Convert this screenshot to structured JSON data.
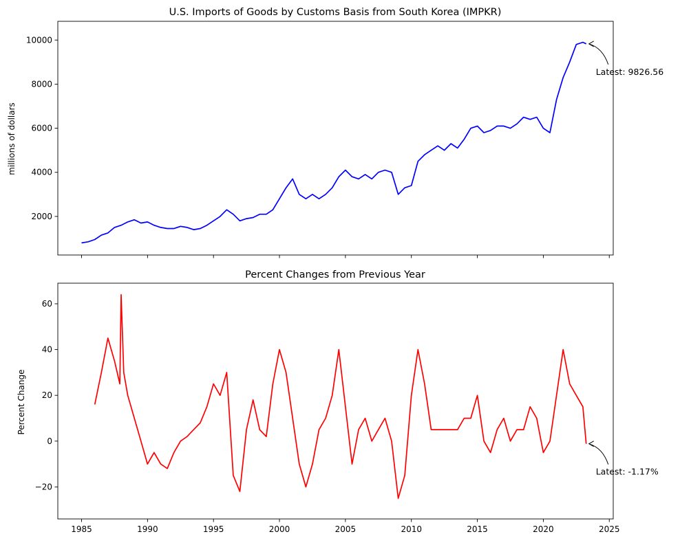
{
  "chart_data": [
    {
      "type": "line",
      "title": "U.S. Imports of Goods by Customs Basis from South Korea (IMPKR)",
      "ylabel": "millions of dollars",
      "xlabel": "",
      "xlim": [
        1983.2,
        2025.3
      ],
      "ylim": [
        250,
        10850
      ],
      "yticks": [
        2000,
        4000,
        6000,
        8000,
        10000
      ],
      "xticks": [
        1985,
        1990,
        1995,
        2000,
        2005,
        2010,
        2015,
        2020,
        2025
      ],
      "x_tick_labels_shown": false,
      "grid": false,
      "color": "#0000ff",
      "annotation": {
        "text": "Latest: 9826.56",
        "x": 2023.25,
        "y": 9826.56
      },
      "series": [
        {
          "x": [
            1985.0,
            1985.5,
            1986.0,
            1986.5,
            1987.0,
            1987.5,
            1988.0,
            1988.5,
            1989.0,
            1989.5,
            1990.0,
            1990.5,
            1991.0,
            1991.5,
            1992.0,
            1992.5,
            1993.0,
            1993.5,
            1994.0,
            1994.5,
            1995.0,
            1995.5,
            1996.0,
            1996.5,
            1997.0,
            1997.5,
            1998.0,
            1998.5,
            1999.0,
            1999.5,
            2000.0,
            2000.5,
            2001.0,
            2001.5,
            2002.0,
            2002.5,
            2003.0,
            2003.5,
            2004.0,
            2004.5,
            2005.0,
            2005.5,
            2006.0,
            2006.5,
            2007.0,
            2007.5,
            2008.0,
            2008.5,
            2009.0,
            2009.5,
            2010.0,
            2010.5,
            2011.0,
            2011.5,
            2012.0,
            2012.5,
            2013.0,
            2013.5,
            2014.0,
            2014.5,
            2015.0,
            2015.5,
            2016.0,
            2016.5,
            2017.0,
            2017.5,
            2018.0,
            2018.5,
            2019.0,
            2019.5,
            2020.0,
            2020.5,
            2021.0,
            2021.5,
            2022.0,
            2022.5,
            2023.0,
            2023.25
          ],
          "y": [
            800,
            850,
            950,
            1150,
            1250,
            1500,
            1600,
            1750,
            1850,
            1700,
            1750,
            1600,
            1500,
            1450,
            1450,
            1550,
            1500,
            1400,
            1450,
            1600,
            1800,
            2000,
            2300,
            2100,
            1800,
            1900,
            1950,
            2100,
            2100,
            2300,
            2800,
            3300,
            3700,
            3000,
            2800,
            3000,
            2800,
            3000,
            3300,
            3800,
            4100,
            3800,
            3700,
            3900,
            3700,
            4000,
            4100,
            4000,
            3000,
            3300,
            3400,
            4500,
            4800,
            5000,
            5200,
            5000,
            5300,
            5100,
            5500,
            6000,
            6100,
            5800,
            5900,
            6100,
            6100,
            6000,
            6200,
            6500,
            6400,
            6500,
            6000,
            5800,
            7300,
            8300,
            9000,
            9800,
            9900,
            9826.56
          ]
        }
      ]
    },
    {
      "type": "line",
      "title": "Percent Changes from Previous Year",
      "ylabel": "Percent Change",
      "xlabel": "",
      "xlim": [
        1983.2,
        2025.3
      ],
      "ylim": [
        -34,
        69
      ],
      "yticks": [
        -20,
        0,
        20,
        40,
        60
      ],
      "xticks": [
        1985,
        1990,
        1995,
        2000,
        2005,
        2010,
        2015,
        2020,
        2025
      ],
      "grid": false,
      "color": "#ff0000",
      "annotation": {
        "text": "Latest: -1.17%",
        "x": 2023.25,
        "y": -1.17
      },
      "series": [
        {
          "x": [
            1986.0,
            1986.5,
            1987.0,
            1987.5,
            1987.9,
            1988.0,
            1988.2,
            1988.5,
            1989.0,
            1989.5,
            1990.0,
            1990.5,
            1991.0,
            1991.5,
            1992.0,
            1992.5,
            1993.0,
            1993.5,
            1994.0,
            1994.5,
            1995.0,
            1995.5,
            1996.0,
            1996.5,
            1997.0,
            1997.5,
            1998.0,
            1998.5,
            1999.0,
            1999.5,
            2000.0,
            2000.5,
            2001.0,
            2001.5,
            2002.0,
            2002.5,
            2003.0,
            2003.5,
            2004.0,
            2004.5,
            2005.0,
            2005.5,
            2006.0,
            2006.5,
            2007.0,
            2007.5,
            2008.0,
            2008.5,
            2009.0,
            2009.5,
            2010.0,
            2010.5,
            2011.0,
            2011.5,
            2012.0,
            2012.5,
            2013.0,
            2013.5,
            2014.0,
            2014.5,
            2015.0,
            2015.5,
            2016.0,
            2016.5,
            2017.0,
            2017.5,
            2018.0,
            2018.5,
            2019.0,
            2019.5,
            2020.0,
            2020.5,
            2021.0,
            2021.5,
            2022.0,
            2022.5,
            2023.0,
            2023.25
          ],
          "y": [
            16,
            30,
            45,
            35,
            25,
            64,
            30,
            20,
            10,
            0,
            -10,
            -5,
            -10,
            -12,
            -5,
            0,
            2,
            5,
            8,
            15,
            25,
            20,
            30,
            -15,
            -22,
            5,
            18,
            5,
            2,
            25,
            40,
            30,
            10,
            -10,
            -20,
            -10,
            5,
            10,
            20,
            40,
            15,
            -10,
            5,
            10,
            0,
            5,
            10,
            0,
            -25,
            -15,
            20,
            40,
            25,
            5,
            5,
            5,
            5,
            5,
            10,
            10,
            20,
            0,
            -5,
            5,
            10,
            0,
            5,
            5,
            15,
            10,
            -5,
            0,
            20,
            40,
            25,
            20,
            15,
            -1.17
          ]
        }
      ]
    }
  ]
}
